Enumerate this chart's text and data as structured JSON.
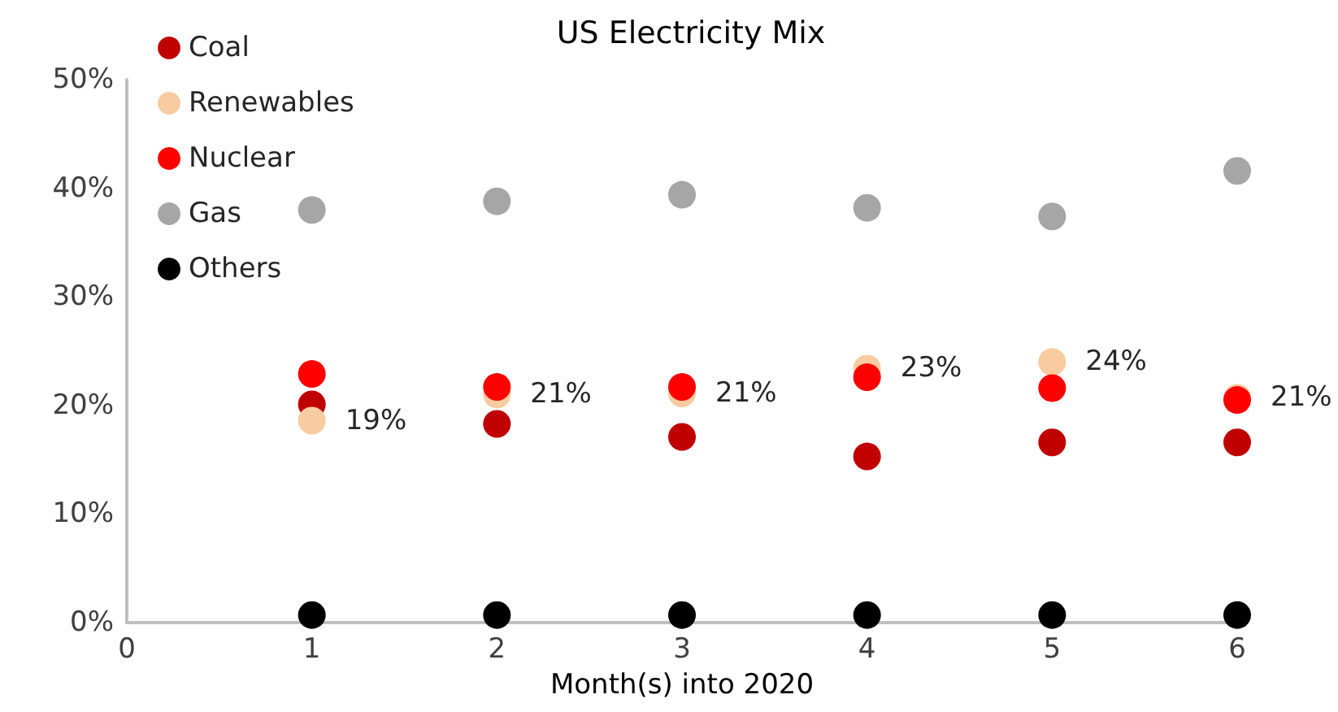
{
  "chart_data": {
    "type": "scatter",
    "title": "US Electricity Mix",
    "xlabel": "Month(s) into 2020",
    "x": [
      1,
      2,
      3,
      4,
      5,
      6
    ],
    "series": [
      {
        "name": "Coal",
        "color": "#c00000",
        "values": [
          20.1,
          18.3,
          17.1,
          15.3,
          16.6,
          16.6
        ]
      },
      {
        "name": "Renewables",
        "color": "#f8cba0",
        "values": [
          18.6,
          21,
          21.1,
          23.4,
          24,
          20.7
        ],
        "value_labels": [
          "19%",
          "21%",
          "21%",
          "23%",
          "24%",
          "21%"
        ]
      },
      {
        "name": "Nuclear",
        "color": "#ff0000",
        "values": [
          22.9,
          21.7,
          21.7,
          22.6,
          21.6,
          20.5
        ]
      },
      {
        "name": "Gas",
        "color": "#a6a6a6",
        "values": [
          38,
          38.8,
          39.4,
          38.2,
          37.4,
          41.6
        ]
      },
      {
        "name": "Others",
        "color": "#000000",
        "values": [
          0.7,
          0.7,
          0.7,
          0.7,
          0.7,
          0.7
        ]
      }
    ],
    "xlim": [
      0,
      6
    ],
    "xticks": [
      0,
      1,
      2,
      3,
      4,
      5,
      6
    ],
    "ylim": [
      0,
      50
    ],
    "yticks": [
      {
        "value": 0,
        "label": "0%"
      },
      {
        "value": 10,
        "label": "10%"
      },
      {
        "value": 20,
        "label": "20%"
      },
      {
        "value": 30,
        "label": "30%"
      },
      {
        "value": 40,
        "label": "40%"
      },
      {
        "value": 50,
        "label": "50%"
      }
    ],
    "marker": "circle",
    "grid": false,
    "legend": "top left"
  }
}
